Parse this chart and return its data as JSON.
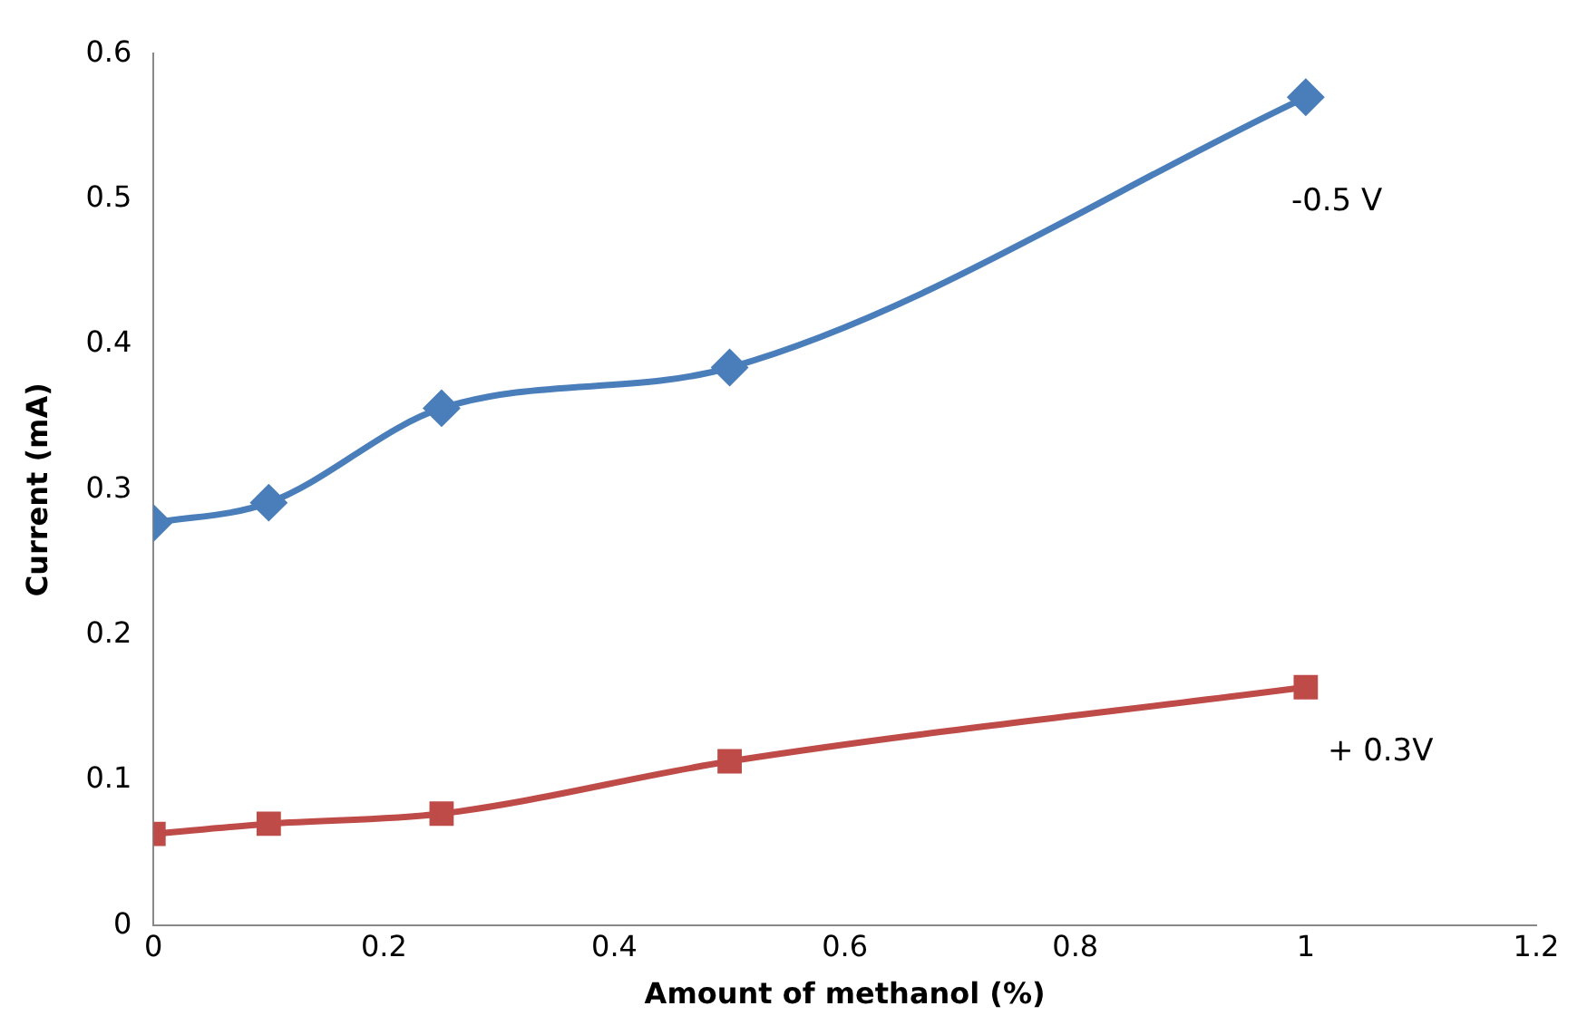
{
  "chart_data": {
    "type": "line",
    "xlabel": "Amount of methanol (%)",
    "ylabel": "Current (mA)",
    "xlim": [
      0,
      1.2
    ],
    "xticks": [
      0,
      0.2,
      0.4,
      0.6,
      0.8,
      1,
      1.2
    ],
    "ylim": [
      0,
      0.6
    ],
    "yticks": [
      0,
      0.1,
      0.2,
      0.3,
      0.4,
      0.5,
      0.6
    ],
    "grid": false,
    "legend": false,
    "series": [
      {
        "name": "-0.5 V",
        "color": "#4a7ebb",
        "marker": "diamond",
        "x": [
          0,
          0.1,
          0.25,
          0.5,
          1
        ],
        "values": [
          0.277,
          0.291,
          0.356,
          0.384,
          0.57
        ]
      },
      {
        "name": "+ 0.3V",
        "color": "#be4b48",
        "marker": "square",
        "x": [
          0,
          0.1,
          0.25,
          0.5,
          1
        ],
        "values": [
          0.063,
          0.07,
          0.077,
          0.113,
          0.164
        ]
      }
    ]
  }
}
